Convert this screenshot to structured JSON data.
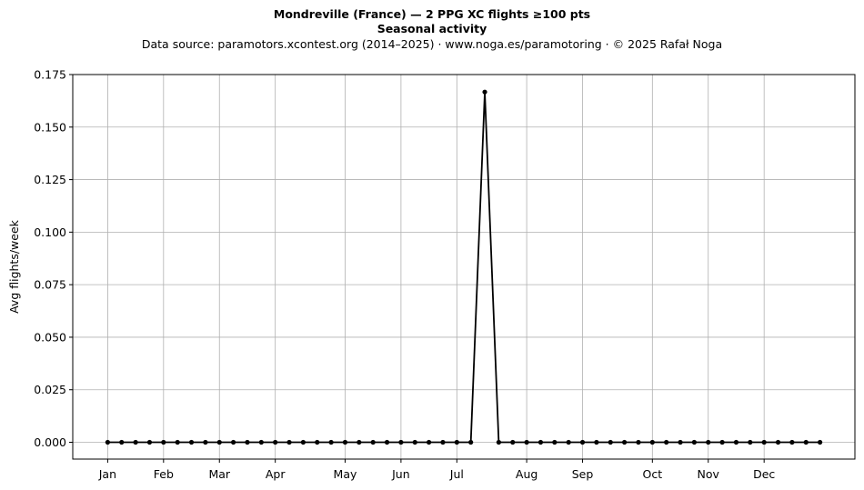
{
  "header": {
    "title_line1": "Mondreville (France)  —  2 PPG XC flights ≥100 pts",
    "title_line2": "Seasonal activity",
    "subtitle": "Data source: paramotors.xcontest.org (2014–2025)  ·  www.noga.es/paramotoring  ·  © 2025 Rafał Noga"
  },
  "chart_data": {
    "type": "line",
    "title": "Mondreville (France)  —  2 PPG XC flights ≥100 pts\nSeasonal activity",
    "subtitle": "Data source: paramotors.xcontest.org (2014–2025)  ·  www.noga.es/paramotoring  ·  © 2025 Rafał Noga",
    "xlabel": "",
    "ylabel": "Avg flights/week",
    "x_unit": "week of year",
    "xlim": [
      -1.5,
      54.5
    ],
    "ylim": [
      -0.008,
      0.175
    ],
    "yticks": [
      0.0,
      0.025,
      0.05,
      0.075,
      0.1,
      0.125,
      0.15,
      0.175
    ],
    "ytick_labels": [
      "0.000",
      "0.025",
      "0.050",
      "0.075",
      "0.100",
      "0.125",
      "0.150",
      "0.175"
    ],
    "xticks": [
      1,
      5,
      9,
      13,
      18,
      22,
      26,
      31,
      35,
      40,
      44,
      48
    ],
    "xtick_labels": [
      "Jan",
      "Feb",
      "Mar",
      "Apr",
      "May",
      "Jun",
      "Jul",
      "Aug",
      "Sep",
      "Oct",
      "Nov",
      "Dec"
    ],
    "grid": true,
    "legend": "none",
    "line_color": "#000000",
    "grid_color": "#b0b0b0",
    "x": [
      1,
      2,
      3,
      4,
      5,
      6,
      7,
      8,
      9,
      10,
      11,
      12,
      13,
      14,
      15,
      16,
      17,
      18,
      19,
      20,
      21,
      22,
      23,
      24,
      25,
      26,
      27,
      28,
      29,
      30,
      31,
      32,
      33,
      34,
      35,
      36,
      37,
      38,
      39,
      40,
      41,
      42,
      43,
      44,
      45,
      46,
      47,
      48,
      49,
      50,
      51,
      52
    ],
    "series": [
      {
        "values": [
          0,
          0,
          0,
          0,
          0,
          0,
          0,
          0,
          0,
          0,
          0,
          0,
          0,
          0,
          0,
          0,
          0,
          0,
          0,
          0,
          0,
          0,
          0,
          0,
          0,
          0,
          0,
          0.1667,
          0,
          0,
          0,
          0,
          0,
          0,
          0,
          0,
          0,
          0,
          0,
          0,
          0,
          0,
          0,
          0,
          0,
          0,
          0,
          0,
          0,
          0,
          0,
          0
        ]
      }
    ]
  }
}
